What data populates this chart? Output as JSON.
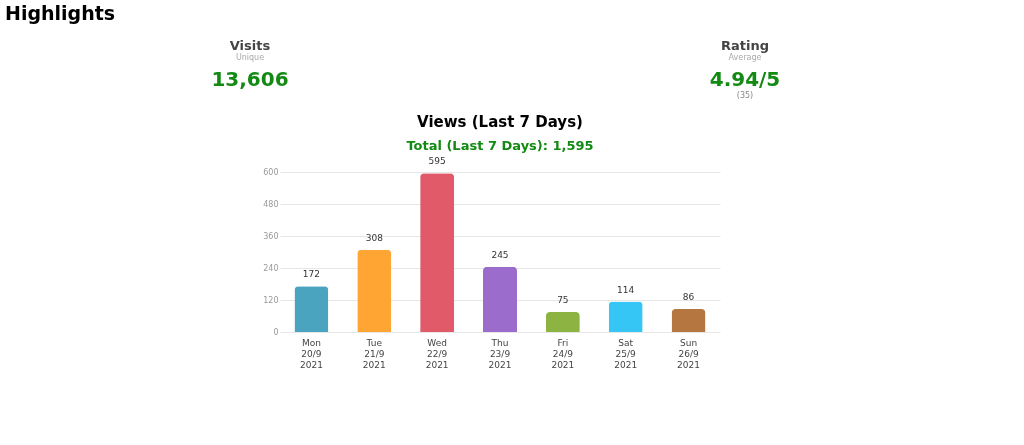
{
  "chart_data": [
    {
      "type": "other",
      "title": "Highlights",
      "annotations": [
        "Visits",
        "Unique",
        "13,606",
        "Rating",
        "Average",
        "4.94/5",
        "(35)"
      ]
    },
    {
      "type": "bar",
      "title": "Views (Last 7 Days)",
      "subtitle": "Total (Last 7 Days): 1,595",
      "categories": [
        "Mon 20/9 2021",
        "Tue 21/9 2021",
        "Wed 22/9 2021",
        "Thu 23/9 2021",
        "Fri 24/9 2021",
        "Sat 25/9 2021",
        "Sun 26/9 2021"
      ],
      "values": [
        172,
        308,
        595,
        245,
        75,
        114,
        86
      ],
      "colors": [
        "#4aa3bf",
        "#ffa533",
        "#e05a6a",
        "#9b6ccc",
        "#8db443",
        "#35c6f5",
        "#b5773f"
      ],
      "ylim": [
        0,
        600
      ],
      "yticks": [
        0,
        120,
        240,
        360,
        480,
        600
      ],
      "grid": "y",
      "data_labels": true
    }
  ]
}
